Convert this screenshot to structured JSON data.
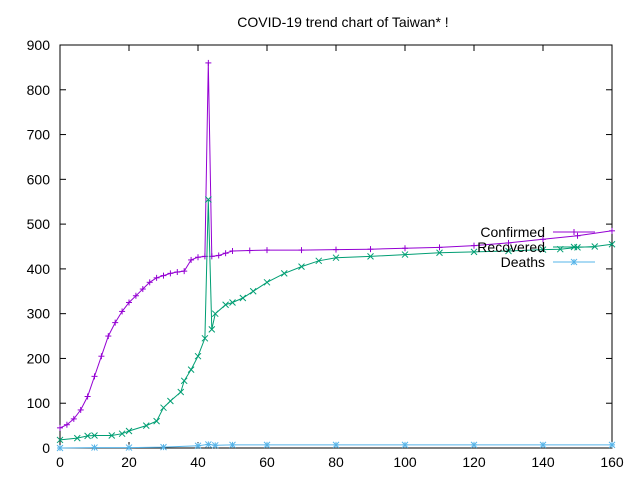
{
  "chart_data": {
    "type": "line",
    "title": "COVID-19 trend chart of Taiwan* !",
    "xlabel": "",
    "ylabel": "",
    "xlim": [
      0,
      160
    ],
    "ylim": [
      0,
      900
    ],
    "x_ticks": [
      "0",
      "20",
      "40",
      "60",
      "80",
      "100",
      "120",
      "140",
      "160"
    ],
    "y_ticks": [
      "0",
      "100",
      "200",
      "300",
      "400",
      "500",
      "600",
      "700",
      "800",
      "900"
    ],
    "grid": false,
    "legend_position": "top-right",
    "series": [
      {
        "name": "Confirmed",
        "color": "#9400d3",
        "marker": "plus",
        "points": [
          [
            0,
            45
          ],
          [
            2,
            52
          ],
          [
            4,
            65
          ],
          [
            6,
            85
          ],
          [
            8,
            115
          ],
          [
            10,
            160
          ],
          [
            12,
            205
          ],
          [
            14,
            250
          ],
          [
            16,
            280
          ],
          [
            18,
            305
          ],
          [
            20,
            325
          ],
          [
            22,
            340
          ],
          [
            24,
            355
          ],
          [
            26,
            370
          ],
          [
            28,
            380
          ],
          [
            30,
            385
          ],
          [
            32,
            390
          ],
          [
            34,
            393
          ],
          [
            36,
            395
          ],
          [
            38,
            420
          ],
          [
            40,
            426
          ],
          [
            42,
            428
          ],
          [
            43,
            860
          ],
          [
            44,
            428
          ],
          [
            46,
            430
          ],
          [
            48,
            435
          ],
          [
            50,
            440
          ],
          [
            55,
            441
          ],
          [
            60,
            442
          ],
          [
            70,
            442
          ],
          [
            80,
            443
          ],
          [
            90,
            444
          ],
          [
            100,
            446
          ],
          [
            110,
            448
          ],
          [
            120,
            452
          ],
          [
            130,
            458
          ],
          [
            140,
            466
          ],
          [
            150,
            474
          ],
          [
            160,
            485
          ]
        ]
      },
      {
        "name": "Recovered",
        "color": "#009e73",
        "marker": "x",
        "points": [
          [
            0,
            18
          ],
          [
            5,
            22
          ],
          [
            8,
            27
          ],
          [
            10,
            28
          ],
          [
            15,
            28
          ],
          [
            18,
            32
          ],
          [
            20,
            38
          ],
          [
            25,
            50
          ],
          [
            28,
            60
          ],
          [
            30,
            90
          ],
          [
            32,
            105
          ],
          [
            35,
            125
          ],
          [
            36,
            150
          ],
          [
            38,
            175
          ],
          [
            40,
            205
          ],
          [
            42,
            245
          ],
          [
            43,
            555
          ],
          [
            44,
            265
          ],
          [
            45,
            300
          ],
          [
            48,
            320
          ],
          [
            50,
            325
          ],
          [
            53,
            335
          ],
          [
            56,
            350
          ],
          [
            60,
            370
          ],
          [
            65,
            390
          ],
          [
            70,
            405
          ],
          [
            75,
            418
          ],
          [
            80,
            425
          ],
          [
            90,
            428
          ],
          [
            100,
            432
          ],
          [
            110,
            436
          ],
          [
            120,
            438
          ],
          [
            130,
            440
          ],
          [
            140,
            443
          ],
          [
            145,
            444
          ],
          [
            150,
            448
          ],
          [
            155,
            450
          ],
          [
            160,
            455
          ]
        ]
      },
      {
        "name": "Deaths",
        "color": "#56b4e9",
        "marker": "star",
        "points": [
          [
            0,
            0
          ],
          [
            10,
            1
          ],
          [
            20,
            1
          ],
          [
            30,
            2
          ],
          [
            40,
            5
          ],
          [
            43,
            8
          ],
          [
            45,
            6
          ],
          [
            50,
            7
          ],
          [
            60,
            7
          ],
          [
            80,
            7
          ],
          [
            100,
            7
          ],
          [
            120,
            7
          ],
          [
            140,
            7
          ],
          [
            160,
            7
          ]
        ]
      }
    ]
  }
}
